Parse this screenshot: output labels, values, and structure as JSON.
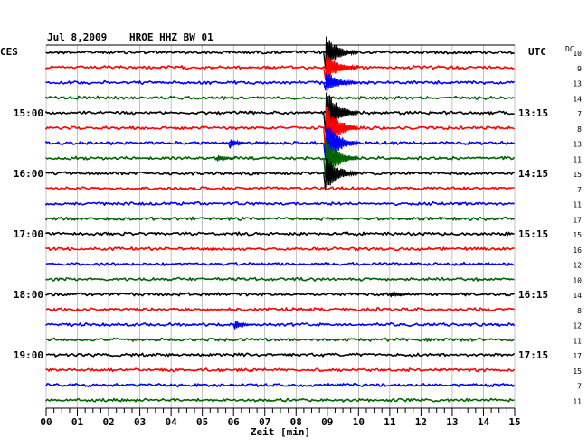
{
  "header": {
    "date": "Jul 8,2009",
    "station": "HROE HHZ BW 01",
    "left_tz": "CES",
    "right_tz": "UTC",
    "dc_label": "DC"
  },
  "chart_data": {
    "type": "line",
    "title": "",
    "xlabel": "Zeit [min]",
    "ylabel": "",
    "xlim": [
      0,
      15
    ],
    "x_ticks": [
      "00",
      "01",
      "02",
      "03",
      "04",
      "05",
      "06",
      "07",
      "08",
      "09",
      "10",
      "11",
      "12",
      "13",
      "14",
      "15"
    ],
    "grid": true,
    "trace_colors": [
      "#000000",
      "#ff0000",
      "#0000ff",
      "#006400"
    ],
    "trace_count": 24,
    "left_time_labels": [
      {
        "trace": 4,
        "label": "15:00"
      },
      {
        "trace": 8,
        "label": "16:00"
      },
      {
        "trace": 12,
        "label": "17:00"
      },
      {
        "trace": 16,
        "label": "18:00"
      },
      {
        "trace": 20,
        "label": "19:00"
      }
    ],
    "right_time_labels": [
      {
        "trace": 4,
        "label": "13:15"
      },
      {
        "trace": 8,
        "label": "14:15"
      },
      {
        "trace": 12,
        "label": "15:15"
      },
      {
        "trace": 16,
        "label": "16:15"
      },
      {
        "trace": 20,
        "label": "17:15"
      }
    ],
    "dc_offsets": [
      10,
      9,
      13,
      14,
      7,
      8,
      13,
      11,
      15,
      7,
      11,
      17,
      15,
      16,
      12,
      10,
      14,
      8,
      12,
      11,
      17,
      15,
      7,
      11
    ],
    "events": [
      {
        "trace": 0,
        "minute": 9.0,
        "amplitude": 20
      },
      {
        "trace": 1,
        "minute": 9.0,
        "amplitude": 18
      },
      {
        "trace": 2,
        "minute": 9.0,
        "amplitude": 14
      },
      {
        "trace": 4,
        "minute": 9.0,
        "amplitude": 30
      },
      {
        "trace": 5,
        "minute": 9.0,
        "amplitude": 30
      },
      {
        "trace": 6,
        "minute": 9.0,
        "amplitude": 28
      },
      {
        "trace": 7,
        "minute": 9.0,
        "amplitude": 26
      },
      {
        "trace": 8,
        "minute": 9.0,
        "amplitude": 22
      },
      {
        "trace": 6,
        "minute": 5.95,
        "amplitude": 6
      },
      {
        "trace": 7,
        "minute": 5.55,
        "amplitude": 4
      },
      {
        "trace": 16,
        "minute": 11.1,
        "amplitude": 3
      },
      {
        "trace": 18,
        "minute": 6.1,
        "amplitude": 6
      }
    ]
  }
}
